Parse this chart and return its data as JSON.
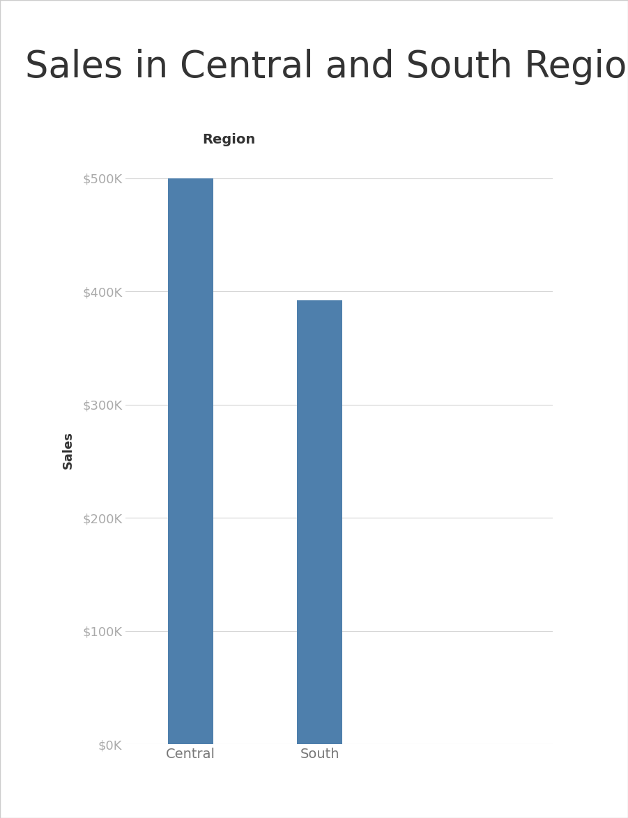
{
  "title": "Sales in Central and South Regions",
  "region_label": "Region",
  "ylabel": "Sales",
  "categories": [
    "Central",
    "South"
  ],
  "values": [
    500000,
    392000
  ],
  "bar_color": "#4e7fac",
  "ylim": [
    0,
    520000
  ],
  "yticks": [
    0,
    100000,
    200000,
    300000,
    400000,
    500000
  ],
  "ytick_labels": [
    "$0K",
    "$100K",
    "$200K",
    "$300K",
    "$400K",
    "$500K"
  ],
  "background_color": "#ffffff",
  "title_fontsize": 38,
  "region_label_fontsize": 14,
  "ylabel_fontsize": 13,
  "tick_fontsize": 13,
  "xtick_fontsize": 14,
  "grid_color": "#d5d5d5",
  "ytick_color": "#aaaaaa",
  "xtick_color": "#777777",
  "border_color": "#cccccc",
  "title_color": "#333333",
  "ylabel_color": "#333333"
}
